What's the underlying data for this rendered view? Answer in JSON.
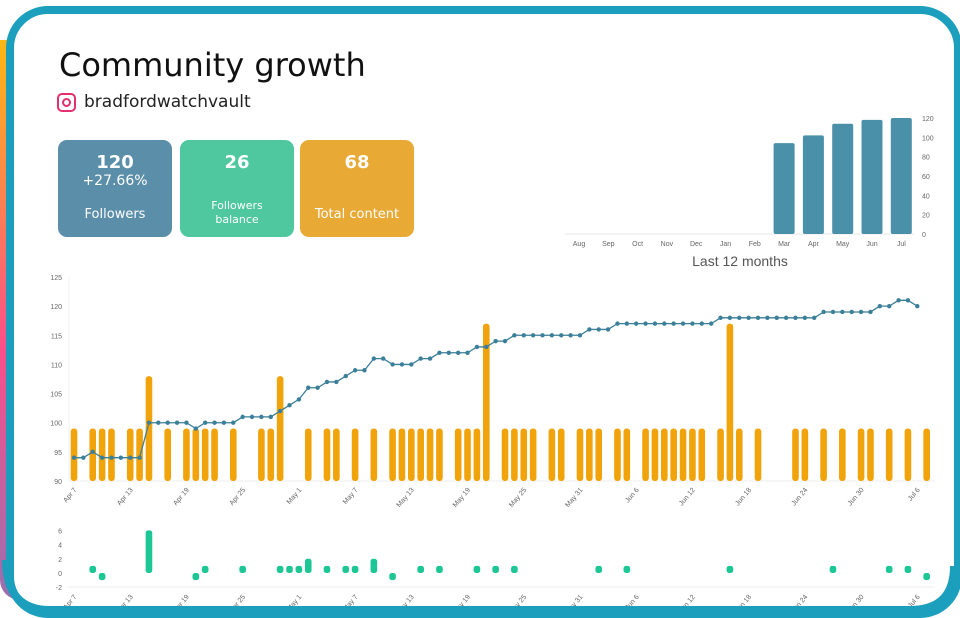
{
  "header": {
    "title": "Community growth",
    "account": "bradfordwatchvault",
    "account_icon": "instagram-icon"
  },
  "stats": [
    {
      "value": "120",
      "sub": "+27.66%",
      "label": "Followers",
      "color": "#5b8ea8"
    },
    {
      "value": "26",
      "label": "Followers balance",
      "color": "#4fc79f"
    },
    {
      "value": "68",
      "label": "Total content",
      "color": "#e8a935"
    }
  ],
  "chart_data": [
    {
      "type": "bar",
      "title": "Last 12 months",
      "categories": [
        "Aug",
        "Sep",
        "Oct",
        "Nov",
        "Dec",
        "Jan",
        "Feb",
        "Mar",
        "Apr",
        "May",
        "Jun",
        "Jul"
      ],
      "values": [
        0,
        0,
        0,
        0,
        0,
        0,
        0,
        94,
        102,
        114,
        118,
        120
      ],
      "ylim": [
        0,
        120
      ],
      "yticks": [
        0,
        20,
        40,
        60,
        80,
        100,
        120
      ],
      "color": "#4a90a8",
      "yaxis": "right"
    },
    {
      "type": "line+bar",
      "x_start": "Apr 7",
      "x_end": "Jul 7",
      "xticks": [
        "Apr 7",
        "Apr 13",
        "Apr 19",
        "Apr 25",
        "May 1",
        "May 7",
        "May 13",
        "May 19",
        "May 25",
        "May 31",
        "Jun 6",
        "Jun 12",
        "Jun 18",
        "Jun 24",
        "Jun 30",
        "Jul 6"
      ],
      "ylim": [
        90,
        125
      ],
      "yticks": [
        90,
        95,
        100,
        105,
        110,
        115,
        120,
        125
      ],
      "followers": [
        94,
        94,
        95,
        94,
        94,
        94,
        94,
        94,
        100,
        100,
        100,
        100,
        100,
        99,
        100,
        100,
        100,
        100,
        101,
        101,
        101,
        101,
        102,
        103,
        104,
        106,
        106,
        107,
        107,
        108,
        109,
        109,
        111,
        111,
        110,
        110,
        110,
        111,
        111,
        112,
        112,
        112,
        112,
        113,
        113,
        114,
        114,
        115,
        115,
        115,
        115,
        115,
        115,
        115,
        115,
        116,
        116,
        116,
        117,
        117,
        117,
        117,
        117,
        117,
        117,
        117,
        117,
        117,
        117,
        118,
        118,
        118,
        118,
        118,
        118,
        118,
        118,
        118,
        118,
        118,
        119,
        119,
        119,
        119,
        119,
        119,
        120,
        120,
        121,
        121,
        120
      ],
      "content_posts": {
        "0": 1,
        "2": 1,
        "3": 1,
        "4": 1,
        "6": 1,
        "7": 1,
        "8": 2,
        "10": 1,
        "12": 1,
        "13": 1,
        "14": 1,
        "15": 1,
        "17": 1,
        "20": 1,
        "21": 1,
        "22": 2,
        "25": 1,
        "27": 1,
        "28": 1,
        "30": 1,
        "32": 1,
        "34": 1,
        "35": 1,
        "36": 1,
        "37": 1,
        "38": 1,
        "39": 1,
        "41": 1,
        "42": 1,
        "43": 1,
        "44": 3,
        "46": 1,
        "47": 1,
        "48": 1,
        "49": 1,
        "51": 1,
        "52": 1,
        "54": 1,
        "55": 1,
        "56": 1,
        "58": 1,
        "59": 1,
        "61": 1,
        "62": 1,
        "63": 1,
        "64": 1,
        "65": 1,
        "66": 1,
        "67": 1,
        "69": 1,
        "70": 3,
        "71": 1,
        "73": 1,
        "77": 1,
        "78": 1,
        "80": 1,
        "82": 1,
        "84": 1,
        "85": 1,
        "87": 1,
        "89": 1,
        "91": 1
      },
      "line_color": "#3b7f99",
      "bar_color": "#f0a30a"
    },
    {
      "type": "bar",
      "ylim": [
        -2,
        6
      ],
      "yticks": [
        -2,
        0,
        2,
        4,
        6
      ],
      "daily_balance": {
        "2": 1,
        "3": -1,
        "8": 6,
        "13": -1,
        "14": 1,
        "18": 1,
        "22": 1,
        "23": 1,
        "24": 1,
        "25": 2,
        "27": 1,
        "29": 1,
        "30": 1,
        "32": 2,
        "34": -1,
        "37": 1,
        "39": 1,
        "43": 1,
        "45": 1,
        "47": 1,
        "56": 1,
        "59": 1,
        "70": 1,
        "81": 1,
        "87": 1,
        "89": 1,
        "91": -1
      },
      "color": "#1dc795"
    }
  ]
}
